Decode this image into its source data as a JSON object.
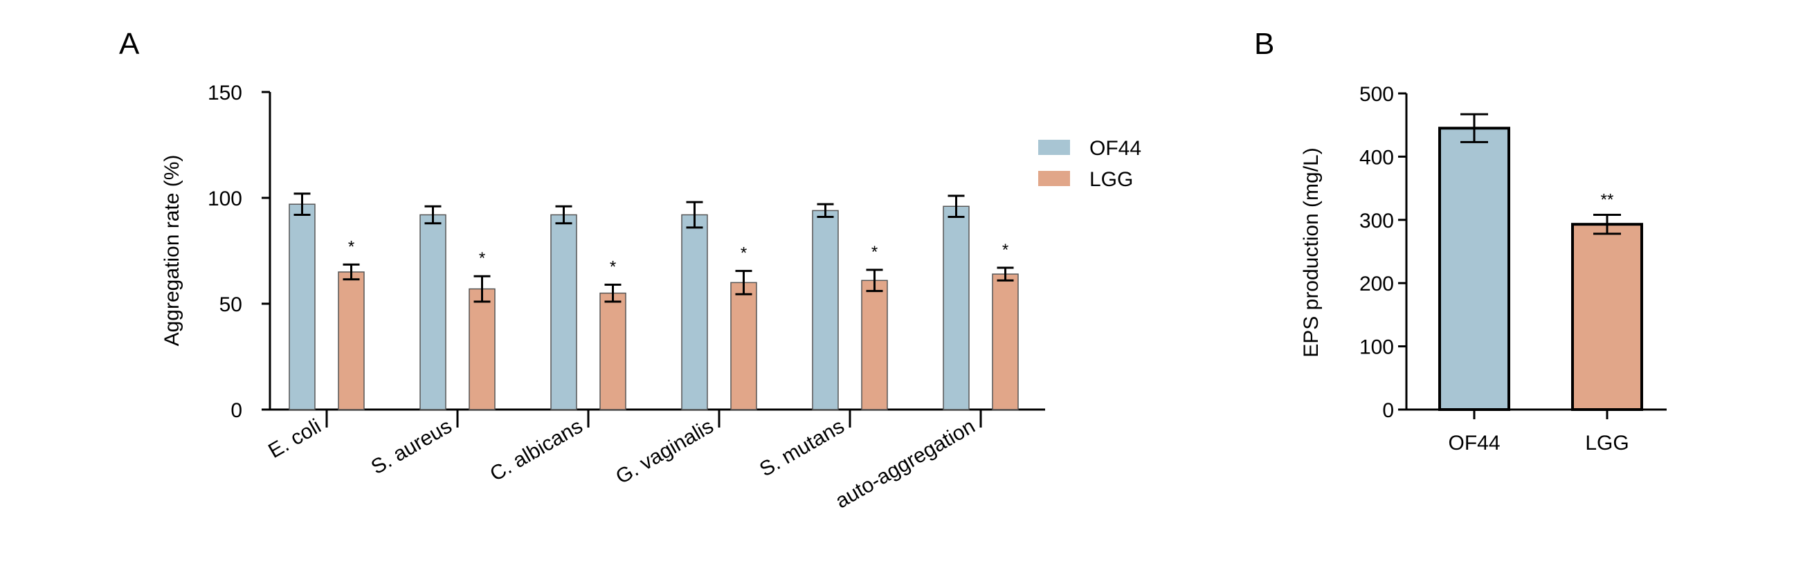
{
  "panels": {
    "a": "A",
    "b": "B"
  },
  "legend": {
    "items": [
      {
        "label": "OF44",
        "color": "#a8c5d3"
      },
      {
        "label": "LGG",
        "color": "#e1a689"
      }
    ]
  },
  "chart_data": [
    {
      "type": "bar",
      "panel": "A",
      "ylabel": "Aggregation rate (%)",
      "xlabel": "",
      "ylim": [
        0,
        150
      ],
      "yticks": [
        0,
        50,
        100,
        150
      ],
      "grid": false,
      "legend_position": "top-right",
      "categories": [
        "E. coli",
        "S. aureus",
        "C. albicans",
        "G. vaginalis",
        "S. mutans",
        "auto-aggregation"
      ],
      "series": [
        {
          "name": "OF44",
          "color": "#a8c5d3",
          "values": [
            97,
            92,
            92,
            92,
            94,
            96
          ],
          "errors": [
            5,
            4,
            4,
            6,
            3,
            5
          ],
          "significance": [
            "",
            "",
            "",
            "",
            "",
            ""
          ]
        },
        {
          "name": "LGG",
          "color": "#e1a689",
          "values": [
            65,
            57,
            55,
            60,
            61,
            64
          ],
          "errors": [
            3.5,
            6,
            4,
            5.5,
            5,
            3
          ],
          "significance": [
            "*",
            "*",
            "*",
            "*",
            "*",
            "*"
          ]
        }
      ]
    },
    {
      "type": "bar",
      "panel": "B",
      "ylabel": "EPS production (mg/L)",
      "xlabel": "",
      "ylim": [
        0,
        500
      ],
      "yticks": [
        0,
        100,
        200,
        300,
        400,
        500
      ],
      "grid": false,
      "categories": [
        "OF44",
        "LGG"
      ],
      "colors": [
        "#a8c5d3",
        "#e1a689"
      ],
      "values": [
        445,
        293
      ],
      "errors": [
        22,
        15
      ],
      "significance": [
        "",
        "**"
      ]
    }
  ]
}
